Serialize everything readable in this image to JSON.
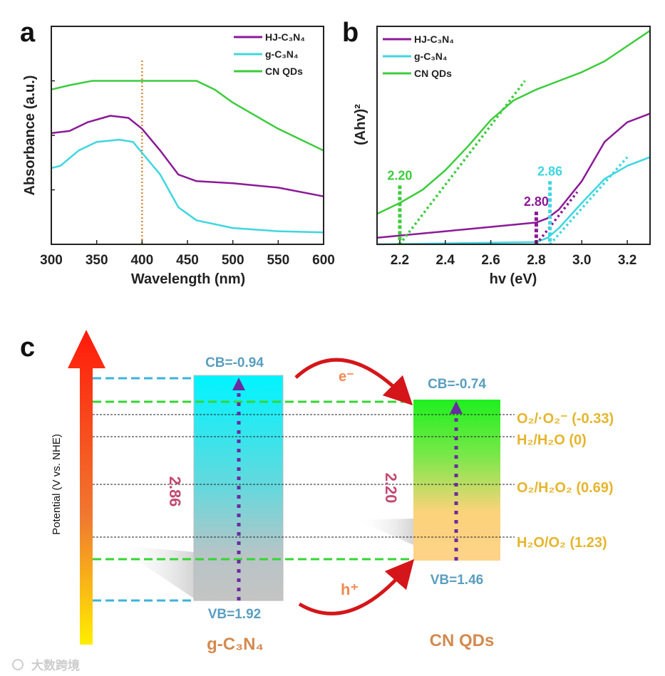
{
  "panels": {
    "a": "a",
    "b": "b",
    "c": "c"
  },
  "colors": {
    "hj": "#8b1a96",
    "g": "#3fd6e0",
    "cn": "#3ccc3c",
    "line400": "#d98a3a"
  },
  "chart_data": [
    {
      "type": "line",
      "panel": "a",
      "title": "",
      "xlabel": "Wavelength (nm)",
      "ylabel": "Absorbance  (a.u.)",
      "xlim": [
        300,
        600
      ],
      "ylim": [
        0,
        1
      ],
      "x_ticks": [
        300,
        350,
        400,
        450,
        500,
        550,
        600
      ],
      "legend_position": "top-right",
      "reference_line_x": 400,
      "series": [
        {
          "name": "HJ-C₃N₄",
          "color": "#8b1a96",
          "x": [
            300,
            320,
            340,
            365,
            385,
            400,
            420,
            440,
            460,
            500,
            550,
            600
          ],
          "y": [
            0.51,
            0.52,
            0.56,
            0.59,
            0.58,
            0.53,
            0.43,
            0.32,
            0.29,
            0.28,
            0.26,
            0.22
          ]
        },
        {
          "name": "g-C₃N₄",
          "color": "#3fd6e0",
          "x": [
            300,
            310,
            330,
            350,
            375,
            390,
            400,
            420,
            440,
            460,
            500,
            550,
            600
          ],
          "y": [
            0.35,
            0.36,
            0.43,
            0.47,
            0.48,
            0.47,
            0.42,
            0.32,
            0.17,
            0.11,
            0.075,
            0.06,
            0.055
          ]
        },
        {
          "name": "CN QDs",
          "color": "#3ccc3c",
          "x": [
            300,
            320,
            345,
            400,
            460,
            480,
            500,
            550,
            600
          ],
          "y": [
            0.71,
            0.73,
            0.75,
            0.75,
            0.75,
            0.71,
            0.65,
            0.53,
            0.43
          ]
        }
      ]
    },
    {
      "type": "line",
      "panel": "b",
      "title": "",
      "xlabel": "hv  (eV)",
      "ylabel": "(Ahv)²",
      "xlim": [
        2.1,
        3.3
      ],
      "ylim": [
        0,
        1
      ],
      "x_ticks": [
        "2.2",
        "2.4",
        "2.6",
        "2.8",
        "3.0",
        "3.2"
      ],
      "legend_position": "top-left",
      "series": [
        {
          "name": "HJ-C₃N₄",
          "color": "#8b1a96",
          "x": [
            2.1,
            2.5,
            2.8,
            2.85,
            2.9,
            3.0,
            3.1,
            3.2,
            3.3
          ],
          "y": [
            0.03,
            0.07,
            0.1,
            0.12,
            0.16,
            0.29,
            0.47,
            0.56,
            0.6
          ]
        },
        {
          "name": "g-C₃N₄",
          "color": "#3fd6e0",
          "x": [
            2.1,
            2.8,
            2.85,
            2.9,
            3.0,
            3.1,
            3.2,
            3.3
          ],
          "y": [
            0.0,
            0.01,
            0.03,
            0.075,
            0.19,
            0.3,
            0.36,
            0.4
          ]
        },
        {
          "name": "CN QDs",
          "color": "#3ccc3c",
          "x": [
            2.1,
            2.2,
            2.3,
            2.4,
            2.5,
            2.6,
            2.7,
            2.8,
            2.9,
            3.0,
            3.1,
            3.2,
            3.3
          ],
          "y": [
            0.14,
            0.19,
            0.25,
            0.34,
            0.45,
            0.57,
            0.66,
            0.71,
            0.75,
            0.79,
            0.84,
            0.91,
            0.98
          ]
        }
      ],
      "tangents": [
        {
          "color": "#3ccc3c",
          "x": [
            2.2,
            2.75
          ],
          "y": [
            0.0,
            0.75
          ]
        },
        {
          "color": "#8b1a96",
          "x": [
            2.8,
            2.98
          ],
          "y": [
            0.0,
            0.24
          ]
        },
        {
          "color": "#3fd6e0",
          "x": [
            2.86,
            3.2
          ],
          "y": [
            0.0,
            0.4
          ]
        }
      ],
      "band_gaps": [
        {
          "label": "2.20",
          "value": 2.2,
          "color": "#3ccc3c",
          "top": 0.27
        },
        {
          "label": "2.80",
          "value": 2.8,
          "color": "#8b1a96",
          "top": 0.15
        },
        {
          "label": "2.86",
          "value": 2.86,
          "color": "#3fd6e0",
          "top": 0.29
        }
      ]
    }
  ],
  "diagram": {
    "y_axis_label": "Potential (V vs. NHE)",
    "g_c3n4": {
      "name": "g-C₃N₄",
      "cb": "CB=-0.94",
      "vb": "VB=1.92",
      "gap": "2.86"
    },
    "cn_qds": {
      "name": "CN QDs",
      "cb": "CB=-0.74",
      "vb": "VB=1.46",
      "gap": "2.20"
    },
    "electron": "e⁻",
    "hole": "h⁺",
    "redox": [
      {
        "label": "O₂/·O₂⁻  (-0.33)",
        "value": -0.33
      },
      {
        "label": "H₂/H₂O  (0)",
        "value": 0
      },
      {
        "label": "O₂/H₂O₂ (0.69)",
        "value": 0.69
      },
      {
        "label": "H₂O/O₂  (1.23)",
        "value": 1.23
      }
    ]
  },
  "watermark": "大数跨境"
}
